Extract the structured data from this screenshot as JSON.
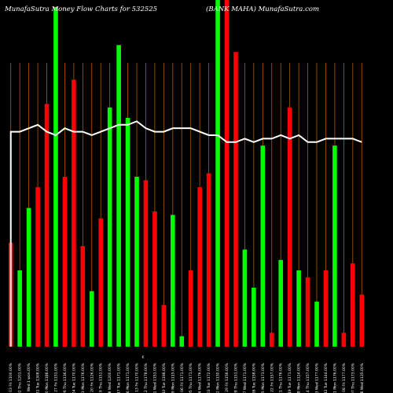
{
  "chart_data": {
    "type": "bar",
    "title": "MunafaSutra  Money Flow  Charts for 532525",
    "subtitle": "(BANK MAHA) MunafaSutra.com",
    "x_center_marker": "€",
    "colors": {
      "up": "#00ff00",
      "down": "#ff0000",
      "line": "#ffffff",
      "grid": "#b05a00",
      "background": "#000000"
    },
    "ylim": [
      0,
      100
    ],
    "categories": [
      "Fri 03 Jan 2025",
      "Thu 02 Jan 2025",
      "Wed 01 Jan 2025",
      "Tue 31 Dec 2024",
      "Mon 30 Dec 2024",
      "Fri 27 Dec 2024",
      "Thu 26 Dec 2024",
      "Tue 24 Dec 2024",
      "Mon 23 Dec 2024",
      "Fri 20 Dec 2024",
      "Thu 19 Dec 2024",
      "Wed 18 Dec 2024",
      "Tue 17 Dec 2024",
      "Mon 16 Dec 2024",
      "Fri 13 Dec 2024",
      "Thu 12 Dec 2024",
      "Wed 11 Dec 2024",
      "Tue 10 Dec 2024",
      "Mon 09 Dec 2024",
      "Fri 06 Dec 2024",
      "Thu 05 Dec 2024",
      "Wed 04 Dec 2024",
      "Tue 03 Dec 2024",
      "Mon 02 Dec 2024",
      "Fri 29 Nov 2024",
      "Thu 28 Nov 2024",
      "Wed 27 Nov 2024",
      "Tue 26 Nov 2024",
      "Mon 25 Nov 2024",
      "Fri 22 Nov 2024",
      "Thu 21 Nov 2024",
      "Tue 19 Nov 2024",
      "Mon 18 Nov 2024",
      "Thu 14 Nov 2024",
      "Wed 13 Nov 2024",
      "Tue 12 Nov 2024",
      "Mon 11 Nov 2024",
      "Fri 08 Nov 2024",
      "Thu 07 Nov 2024",
      "Wed 06 Nov 2024"
    ],
    "tick_labels": [
      "03 Fri 1100.00%",
      "02 Thu 1201.00%",
      "01 Wed 1 won.00%",
      "31 Tue 1308.00%",
      "30 Mon 1186.00%",
      "27 Fri 1151.00%",
      "26 Thu 1136.00%",
      "24 Tue 1170.00%",
      "23 Mon 1176.00%",
      "20 Fri 1126.00%",
      "19 Thu 1151.00%",
      "18 Wed 1200.00%",
      "17 Tue 1171.00%",
      "16 Mon 1171.00%",
      "13 Fri 1170.00%",
      "12 Thu 1178.00%",
      "11 Wed 1151.00%",
      "10 Tue 1198.00%",
      "09 Mon 1115.00%",
      "06 Fri 1171.00%",
      "05 Thu 1171.00%",
      "04 Wed 1176.00%",
      "03 Tue 1172.00%",
      "02 Mon 1130.00%",
      "29 Fri 1156.00%",
      "28 Thu 1151.00%",
      "27 Wed 1171.00%",
      "26 Tue 1158.00%",
      "25 Mon 1173.00%",
      "22 Fri 1157.00%",
      "21 Thu 1176.00%",
      "19 Tue 1171.00%",
      "18 Mon 1124.00%",
      "14 Thu 1157.00%",
      "13 Wed 1177.00%",
      "12 Tue 1144.00%",
      "11 Mon 1176.00%",
      "08 Fri 1177.00%",
      "07 Thu 1173.00%",
      "06 Wed 1135.00%"
    ],
    "series": [
      {
        "values": [
          30,
          22,
          40,
          46,
          70,
          98,
          49,
          77,
          29,
          16,
          37,
          69,
          87,
          66,
          49,
          48,
          39,
          12,
          38,
          3,
          22,
          46,
          50,
          100,
          100,
          85,
          28,
          17,
          58,
          4,
          25,
          69,
          22,
          20,
          13,
          22,
          58,
          4,
          24,
          15
        ],
        "direction": [
          "down",
          "up",
          "up",
          "down",
          "down",
          "up",
          "down",
          "down",
          "down",
          "up",
          "down",
          "up",
          "up",
          "up",
          "up",
          "down",
          "down",
          "down",
          "up",
          "up",
          "down",
          "down",
          "down",
          "up",
          "down",
          "down",
          "up",
          "up",
          "up",
          "down",
          "up",
          "down",
          "up",
          "down",
          "up",
          "down",
          "up",
          "down",
          "down",
          "down"
        ]
      },
      {
        "values": [
          62,
          62,
          63,
          64,
          62,
          61,
          63,
          62,
          62,
          61,
          62,
          63,
          64,
          64,
          65,
          63,
          62,
          62,
          63,
          63,
          63,
          62,
          61,
          61,
          59,
          59,
          60,
          59,
          60,
          60,
          61,
          60,
          61,
          59,
          59,
          60,
          60,
          60,
          60,
          59
        ]
      }
    ]
  }
}
